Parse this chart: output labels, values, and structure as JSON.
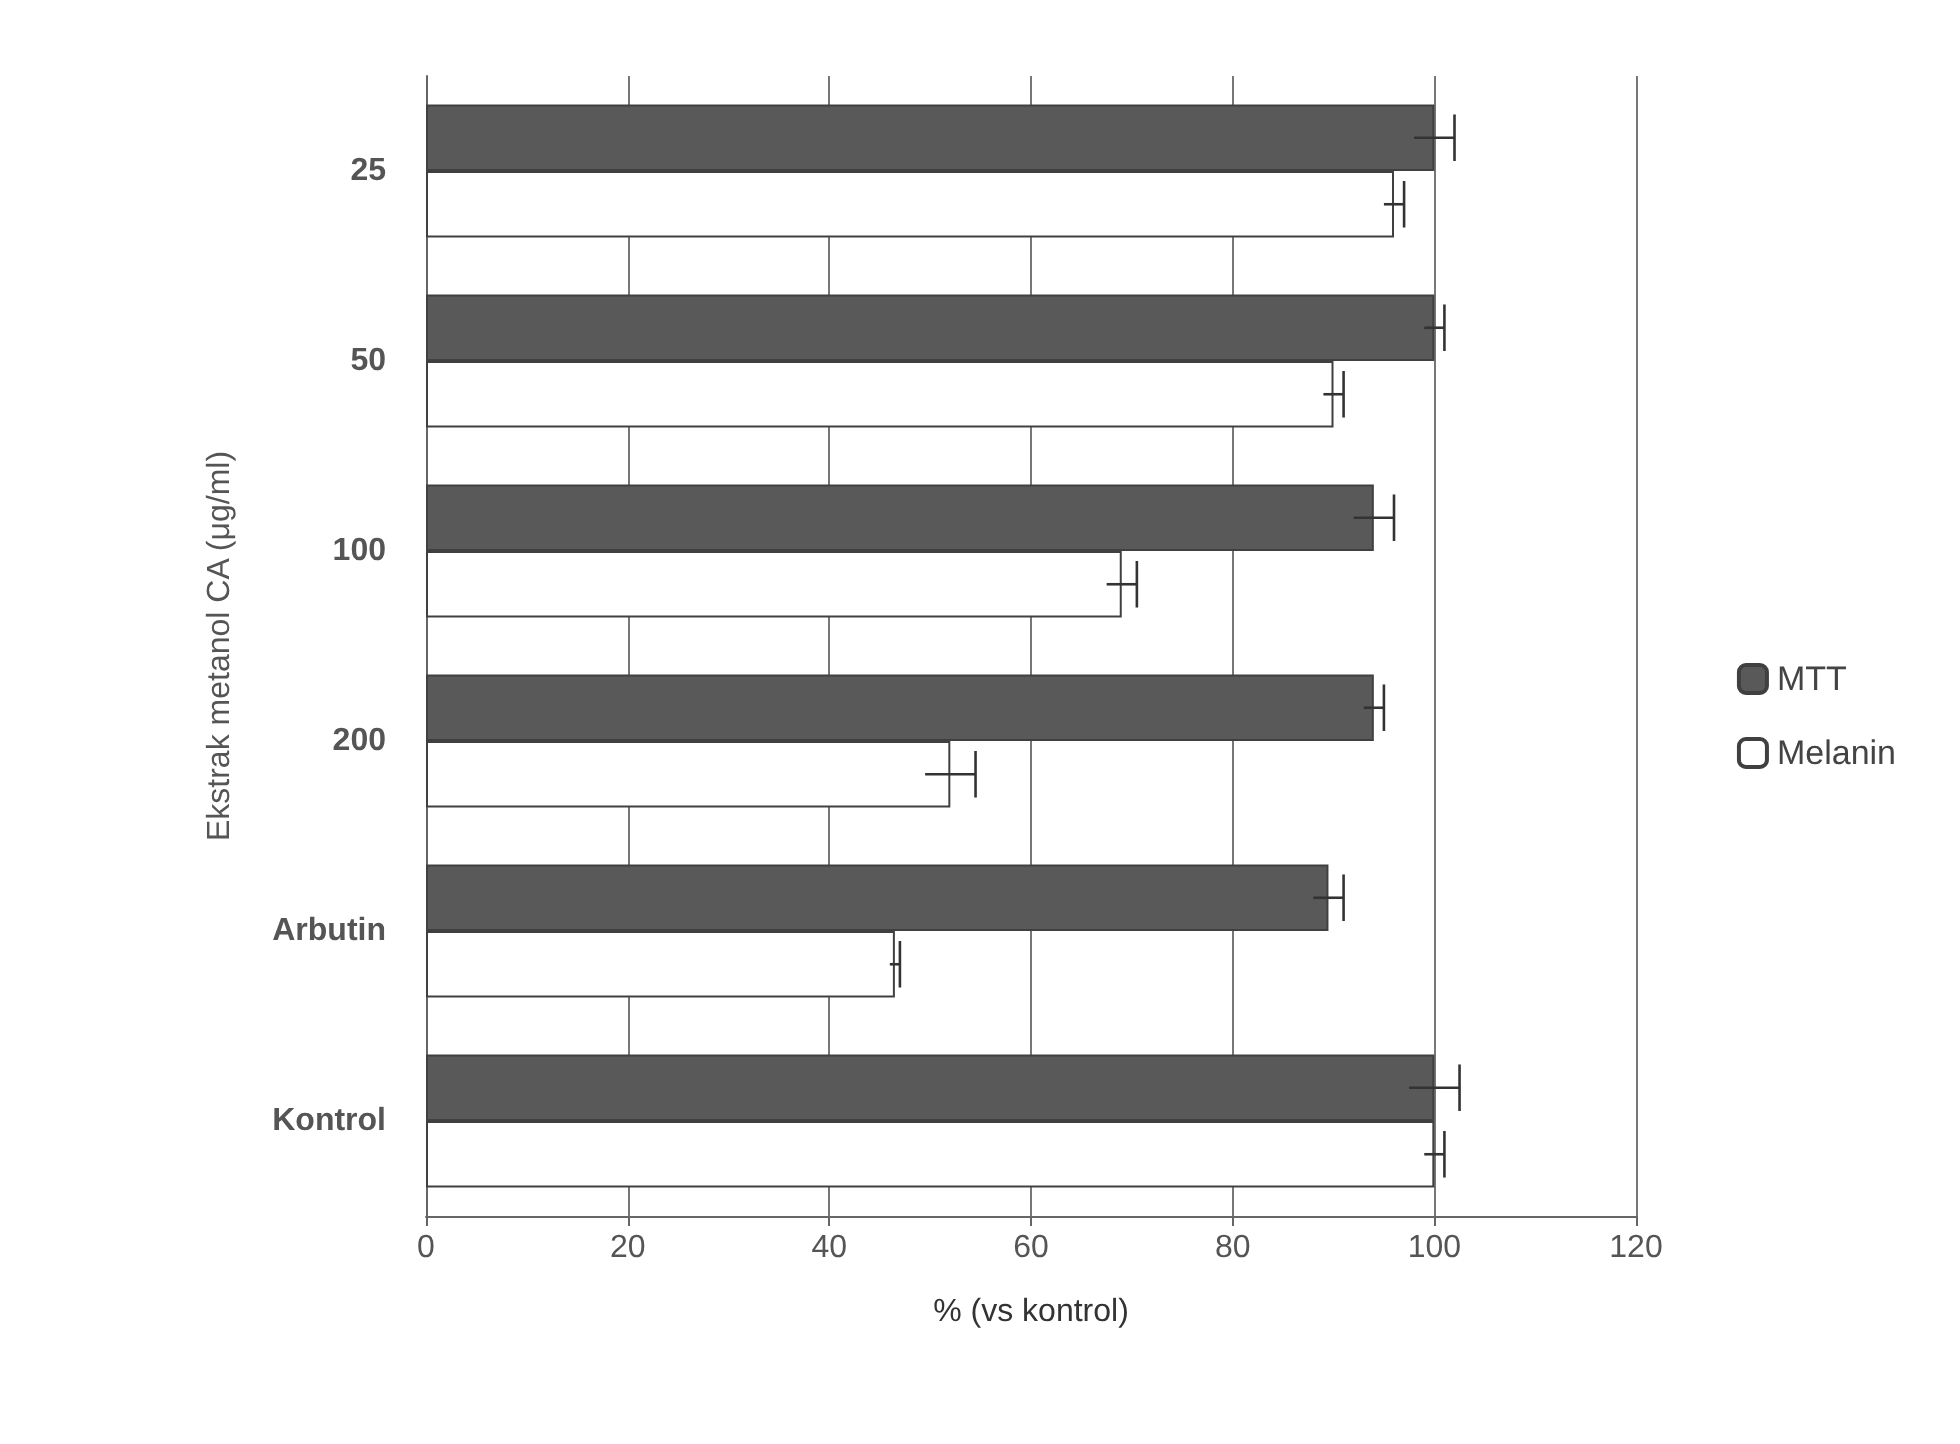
{
  "chart_data": {
    "type": "bar",
    "orientation": "horizontal",
    "xlabel": "% (vs kontrol)",
    "ylabel": "Ekstrak metanol CA (μg/ml)",
    "categories": [
      "25",
      "50",
      "100",
      "200",
      "Arbutin",
      "Kontrol"
    ],
    "series": [
      {
        "name": "MTT",
        "color": "#595959",
        "values": [
          100,
          100,
          94,
          94,
          89.5,
          100
        ],
        "errors": [
          2,
          1,
          2,
          1,
          1.5,
          2.5
        ]
      },
      {
        "name": "Melanin",
        "color": "#ffffff",
        "values": [
          96,
          90,
          69,
          52,
          46.5,
          100
        ],
        "errors": [
          1,
          1,
          1.5,
          2.5,
          0.5,
          1
        ]
      }
    ],
    "xlim": [
      0,
      120
    ],
    "xticks": [
      0,
      20,
      40,
      60,
      80,
      100,
      120
    ],
    "grid": "x",
    "legend": "right"
  }
}
